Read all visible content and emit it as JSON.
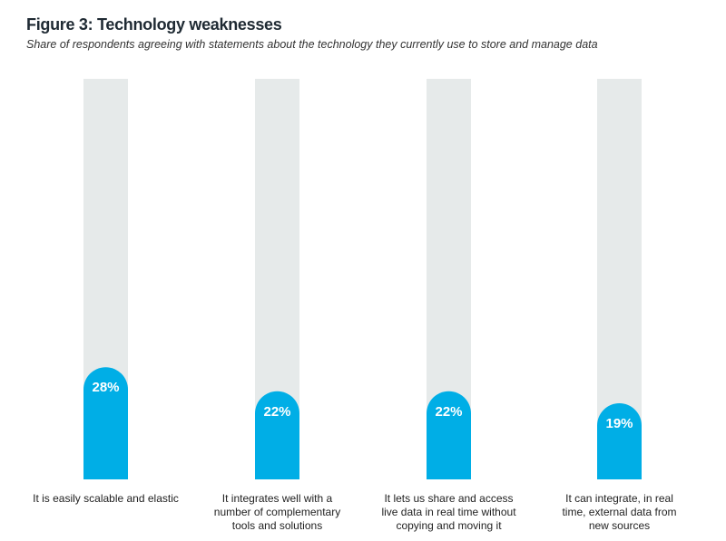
{
  "chart_data": {
    "type": "bar",
    "title": "Figure 3: Technology weaknesses",
    "subtitle": "Share of respondents agreeing with statements about the technology they currently use to store and manage data",
    "categories": [
      "It is easily scalable and elastic",
      "It integrates well with a number of complementary tools and solutions",
      "It lets us share and access live data in real time without copying and moving it",
      "It can integrate, in real time, external data from new sources"
    ],
    "category_lines": [
      [
        "It is easily scalable and elastic"
      ],
      [
        "It integrates well with a",
        "number of complementary",
        "tools and solutions"
      ],
      [
        "It lets us share and access",
        "live data in real time without",
        "copying and moving it"
      ],
      [
        "It can integrate, in real",
        "time, external data from",
        "new sources"
      ]
    ],
    "values": [
      28,
      22,
      22,
      19
    ],
    "data_labels": [
      "28%",
      "22%",
      "22%",
      "19%"
    ],
    "ylim": [
      0,
      100
    ],
    "unit": "%",
    "grid": false,
    "colors": {
      "bar": "#00aee6",
      "track": "#e6eaea",
      "label": "#ffffff"
    }
  }
}
